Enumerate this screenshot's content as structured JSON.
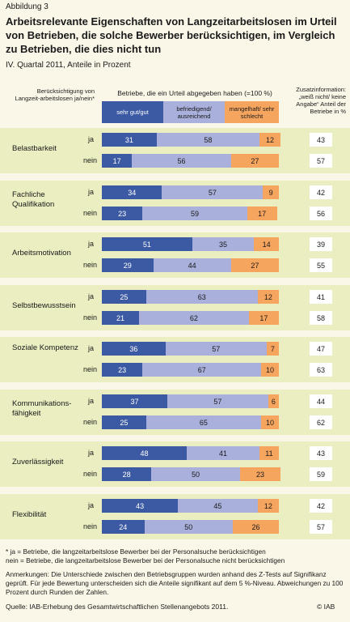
{
  "figure_label": "Abbildung 3",
  "title": "Arbeitsrelevante Eigenschaften von Langzeitarbeitslosen im Urteil von Betrieben, die solche Bewerber berücksichtigen, im Vergleich zu Betrieben, die dies nicht tun",
  "subtitle": "IV. Quartal 2011, Anteile in Prozent",
  "header_left": "Berücksichtigung von Langzeit-arbeitslosen ja/nein*",
  "header_top": "Betriebe, die ein Urteil abgegeben haben (=100 %)",
  "header_right": "Zusatzinformation: „weiß nicht/ keine Angabe“ Anteil der Betriebe in %",
  "legend": [
    "sehr gut/gut",
    "befriedigend/ ausreichend",
    "mangelhaft/ sehr schlecht"
  ],
  "colors": {
    "good": "#3c5aa3",
    "mid": "#a9b0db",
    "bad": "#f6a55f",
    "band": "#eaeec1",
    "background": "#fbf7e8"
  },
  "chart_data": {
    "type": "bar",
    "orientation": "horizontal",
    "stacked": true,
    "categories": [
      "Belastbarkeit",
      "Fachliche Qualifikation",
      "Arbeitsmotivation",
      "Selbstbewusstsein",
      "Soziale Kompetenz",
      "Kommunikations-fähigkeit",
      "Zuverlässigkeit",
      "Flexibilität"
    ],
    "groups": [
      "ja",
      "nein"
    ],
    "series": [
      {
        "name": "sehr gut/gut",
        "ja": [
          31,
          34,
          51,
          25,
          36,
          37,
          48,
          43
        ],
        "nein": [
          17,
          23,
          29,
          21,
          23,
          25,
          28,
          24
        ]
      },
      {
        "name": "befriedigend/ ausreichend",
        "ja": [
          58,
          57,
          35,
          63,
          57,
          57,
          41,
          45
        ],
        "nein": [
          56,
          59,
          44,
          62,
          67,
          65,
          50,
          50
        ]
      },
      {
        "name": "mangelhaft/ sehr schlecht",
        "ja": [
          12,
          9,
          14,
          12,
          7,
          6,
          11,
          12
        ],
        "nein": [
          27,
          17,
          27,
          17,
          10,
          10,
          23,
          26
        ]
      }
    ],
    "zusatz": {
      "ja": [
        43,
        42,
        39,
        41,
        47,
        44,
        43,
        42
      ],
      "nein": [
        57,
        56,
        55,
        58,
        63,
        62,
        59,
        57
      ]
    },
    "xlim": [
      0,
      100
    ]
  },
  "footnote": "* ja = Betriebe, die langzeitarbeitslose Bewerber bei der Personalsuche berücksichtigen\n  nein = Betriebe, die langzeitarbeitslose Bewerber bei der Personalsuche nicht berücksichtigen",
  "remarks": "Anmerkungen: Die Unterschiede zwischen den Betriebsgruppen wurden anhand des Z-Tests auf Signifikanz geprüft. Für jede Bewertung unterscheiden sich die Anteile signifikant auf dem 5 %-Niveau. Abweichungen zu 100 Prozent durch Runden der Zahlen.",
  "source": "Quelle: IAB-Erhebung des Gesamtwirtschaftlichen Stellenangebots 2011.",
  "copyright": "© IAB"
}
